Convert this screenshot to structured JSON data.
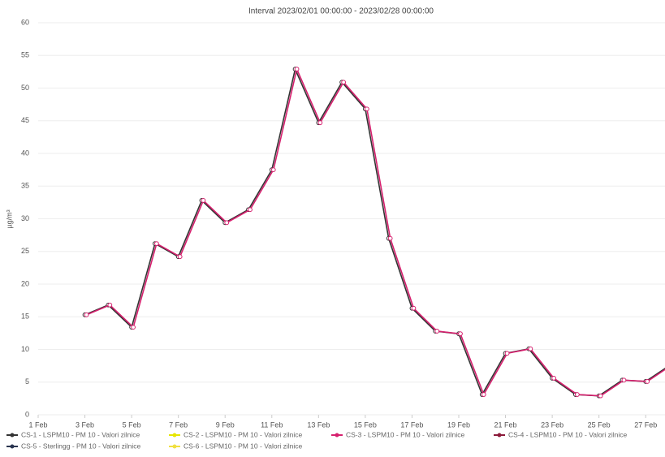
{
  "chart_data": {
    "type": "line",
    "title": "Interval 2023/02/01 00:00:00 - 2023/02/28 00:00:00",
    "y_label": "µg/m³",
    "x": [
      3,
      4,
      5,
      6,
      7,
      8,
      9,
      10,
      11,
      12,
      13,
      14,
      15,
      16,
      17,
      18,
      19,
      20,
      21,
      22,
      23,
      24,
      25,
      26,
      27,
      28
    ],
    "xlim": [
      1,
      28
    ],
    "xticks": [
      {
        "value": 1,
        "label": "1 Feb"
      },
      {
        "value": 3,
        "label": "3 Feb"
      },
      {
        "value": 5,
        "label": "5 Feb"
      },
      {
        "value": 7,
        "label": "7 Feb"
      },
      {
        "value": 9,
        "label": "9 Feb"
      },
      {
        "value": 11,
        "label": "11 Feb"
      },
      {
        "value": 13,
        "label": "13 Feb"
      },
      {
        "value": 15,
        "label": "15 Feb"
      },
      {
        "value": 17,
        "label": "17 Feb"
      },
      {
        "value": 19,
        "label": "19 Feb"
      },
      {
        "value": 21,
        "label": "21 Feb"
      },
      {
        "value": 23,
        "label": "23 Feb"
      },
      {
        "value": 25,
        "label": "25 Feb"
      },
      {
        "value": 27,
        "label": "27 Feb"
      }
    ],
    "ylim": [
      0,
      60
    ],
    "yticks": [
      0,
      5,
      10,
      15,
      20,
      25,
      30,
      35,
      40,
      45,
      50,
      55,
      60
    ],
    "grid": true,
    "series": [
      {
        "name": "CS-1 - LSPM10 - PM 10 - Valori zilnice",
        "color": "#333333",
        "values": [
          15.3,
          16.8,
          13.4,
          26.2,
          24.2,
          32.8,
          29.4,
          31.4,
          37.5,
          52.9,
          44.7,
          50.9,
          46.8,
          27.0,
          16.3,
          12.8,
          12.4,
          3.1,
          9.4,
          10.1,
          5.6,
          3.1,
          2.9,
          5.3,
          5.1,
          7.5
        ]
      },
      {
        "name": "CS-2 - LSPM10 - PM 10 - Valori zilnice",
        "color": "#e6e600",
        "values": [
          null,
          null,
          null,
          null,
          null,
          null,
          null,
          null,
          null,
          null,
          null,
          null,
          null,
          null,
          null,
          null,
          null,
          null,
          null,
          null,
          null,
          null,
          null,
          null,
          null,
          null
        ]
      },
      {
        "name": "CS-3 - LSPM10 - PM 10 - Valori zilnice",
        "color": "#d6206e",
        "values": [
          15.3,
          16.8,
          13.4,
          26.2,
          24.2,
          32.8,
          29.4,
          31.4,
          37.5,
          52.9,
          44.7,
          50.9,
          46.8,
          27.0,
          16.3,
          12.8,
          12.4,
          3.1,
          9.4,
          10.1,
          5.6,
          3.1,
          2.9,
          5.3,
          5.1,
          7.5
        ]
      },
      {
        "name": "CS-4 - LSPM10 - PM 10 - Valori zilnice",
        "color": "#8b1a3a",
        "values": [
          null,
          null,
          null,
          null,
          null,
          null,
          null,
          null,
          null,
          null,
          null,
          null,
          null,
          null,
          null,
          null,
          null,
          null,
          null,
          null,
          null,
          null,
          null,
          null,
          null,
          null
        ]
      },
      {
        "name": "CS-5 - Sterlingg - PM 10 - Valori zilnice",
        "color": "#2a3550",
        "values": [
          null,
          null,
          null,
          null,
          null,
          null,
          null,
          null,
          null,
          null,
          null,
          null,
          null,
          null,
          null,
          null,
          null,
          null,
          null,
          null,
          null,
          null,
          null,
          null,
          null,
          null
        ]
      },
      {
        "name": "CS-6 - LSPM10 - PM 10 - Valori zilnice",
        "color": "#f0e040",
        "values": [
          null,
          null,
          null,
          null,
          null,
          null,
          null,
          null,
          null,
          null,
          null,
          null,
          null,
          null,
          null,
          null,
          null,
          null,
          null,
          null,
          null,
          null,
          null,
          null,
          null,
          null
        ]
      }
    ]
  }
}
